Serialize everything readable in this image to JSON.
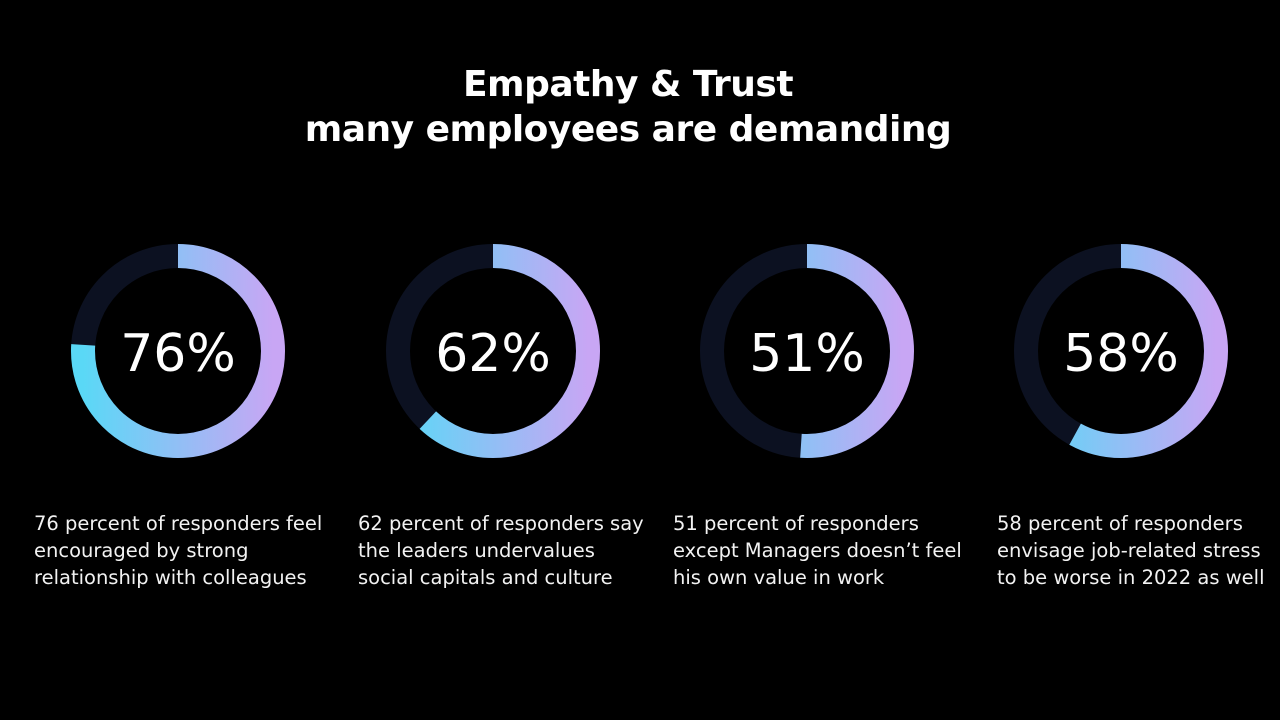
{
  "title": {
    "line1": "Empathy & Trust",
    "line2": "many employees are demanding"
  },
  "colors": {
    "background": "#000000",
    "track": "#0c1121",
    "gradient_start": "#5ad8f6",
    "gradient_end": "#c8a6f4",
    "text": "#ffffff"
  },
  "chart_data": {
    "type": "pie",
    "variant": "donut",
    "title": "Empathy & Trust many employees are demanding",
    "unit": "%",
    "series": [
      {
        "name": "Feel encouraged by strong relationship with colleagues",
        "value": 76,
        "label": "76%",
        "description": "76 percent of responders feel\nencouraged by strong\nrelationship with colleagues"
      },
      {
        "name": "Say leaders undervalue social capitals and culture",
        "value": 62,
        "label": "62%",
        "description": "62 percent of responders say\nthe leaders undervalues\nsocial capitals and culture"
      },
      {
        "name": "Except Managers doesn't feel his own value in work",
        "value": 51,
        "label": "51%",
        "description": "51 percent of responders\nexcept Managers doesn’t feel\nhis own value in work"
      },
      {
        "name": "Envisage job-related stress to be worse in 2022",
        "value": 58,
        "label": "58%",
        "description": "58 percent of responders\nenvisage job-related stress\nto be worse in 2022 as well"
      }
    ]
  }
}
